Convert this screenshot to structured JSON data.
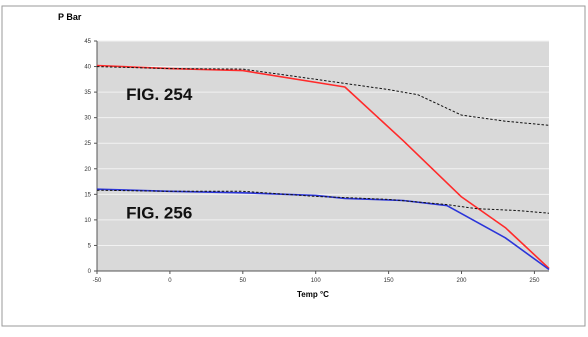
{
  "chart_data": {
    "type": "line",
    "ylabel": "P Bar",
    "xlabel": "Temp °C",
    "xlim": [
      -50,
      260
    ],
    "ylim": [
      0,
      45
    ],
    "xticks": [
      -50,
      0,
      50,
      100,
      150,
      200,
      250
    ],
    "yticks": [
      0,
      5,
      10,
      15,
      20,
      25,
      30,
      35,
      40,
      45
    ],
    "grid": "horizontal",
    "plot_background": "#d9d9d9",
    "series": [
      {
        "name": "",
        "color": "#ff2a2a",
        "style": "solid",
        "points": [
          [
            -50,
            40.2
          ],
          [
            0,
            39.6
          ],
          [
            50,
            39.2
          ],
          [
            120,
            36.0
          ],
          [
            160,
            25.5
          ],
          [
            200,
            14.5
          ],
          [
            230,
            8.5
          ],
          [
            260,
            0.5
          ]
        ]
      },
      {
        "name": "",
        "color": "#111111",
        "style": "dashed",
        "points": [
          [
            -50,
            40.0
          ],
          [
            0,
            39.6
          ],
          [
            50,
            39.5
          ],
          [
            100,
            37.5
          ],
          [
            150,
            35.5
          ],
          [
            170,
            34.5
          ],
          [
            200,
            30.5
          ],
          [
            230,
            29.3
          ],
          [
            260,
            28.5
          ]
        ]
      },
      {
        "name": "",
        "color": "#2b35d9",
        "style": "solid",
        "points": [
          [
            -50,
            16.0
          ],
          [
            0,
            15.6
          ],
          [
            50,
            15.3
          ],
          [
            100,
            14.8
          ],
          [
            120,
            14.2
          ],
          [
            160,
            13.8
          ],
          [
            190,
            12.8
          ],
          [
            230,
            6.5
          ],
          [
            260,
            0.3
          ]
        ]
      },
      {
        "name": "",
        "color": "#111111",
        "style": "dashed",
        "points": [
          [
            -50,
            15.8
          ],
          [
            0,
            15.6
          ],
          [
            50,
            15.6
          ],
          [
            100,
            14.6
          ],
          [
            150,
            14.0
          ],
          [
            190,
            13.0
          ],
          [
            210,
            12.2
          ],
          [
            240,
            11.8
          ],
          [
            260,
            11.3
          ]
        ]
      }
    ],
    "annotations": [
      {
        "text": "FIG. 254",
        "x": -30,
        "y": 33.5
      },
      {
        "text": "FIG. 256",
        "x": -30,
        "y": 10.3
      }
    ]
  }
}
